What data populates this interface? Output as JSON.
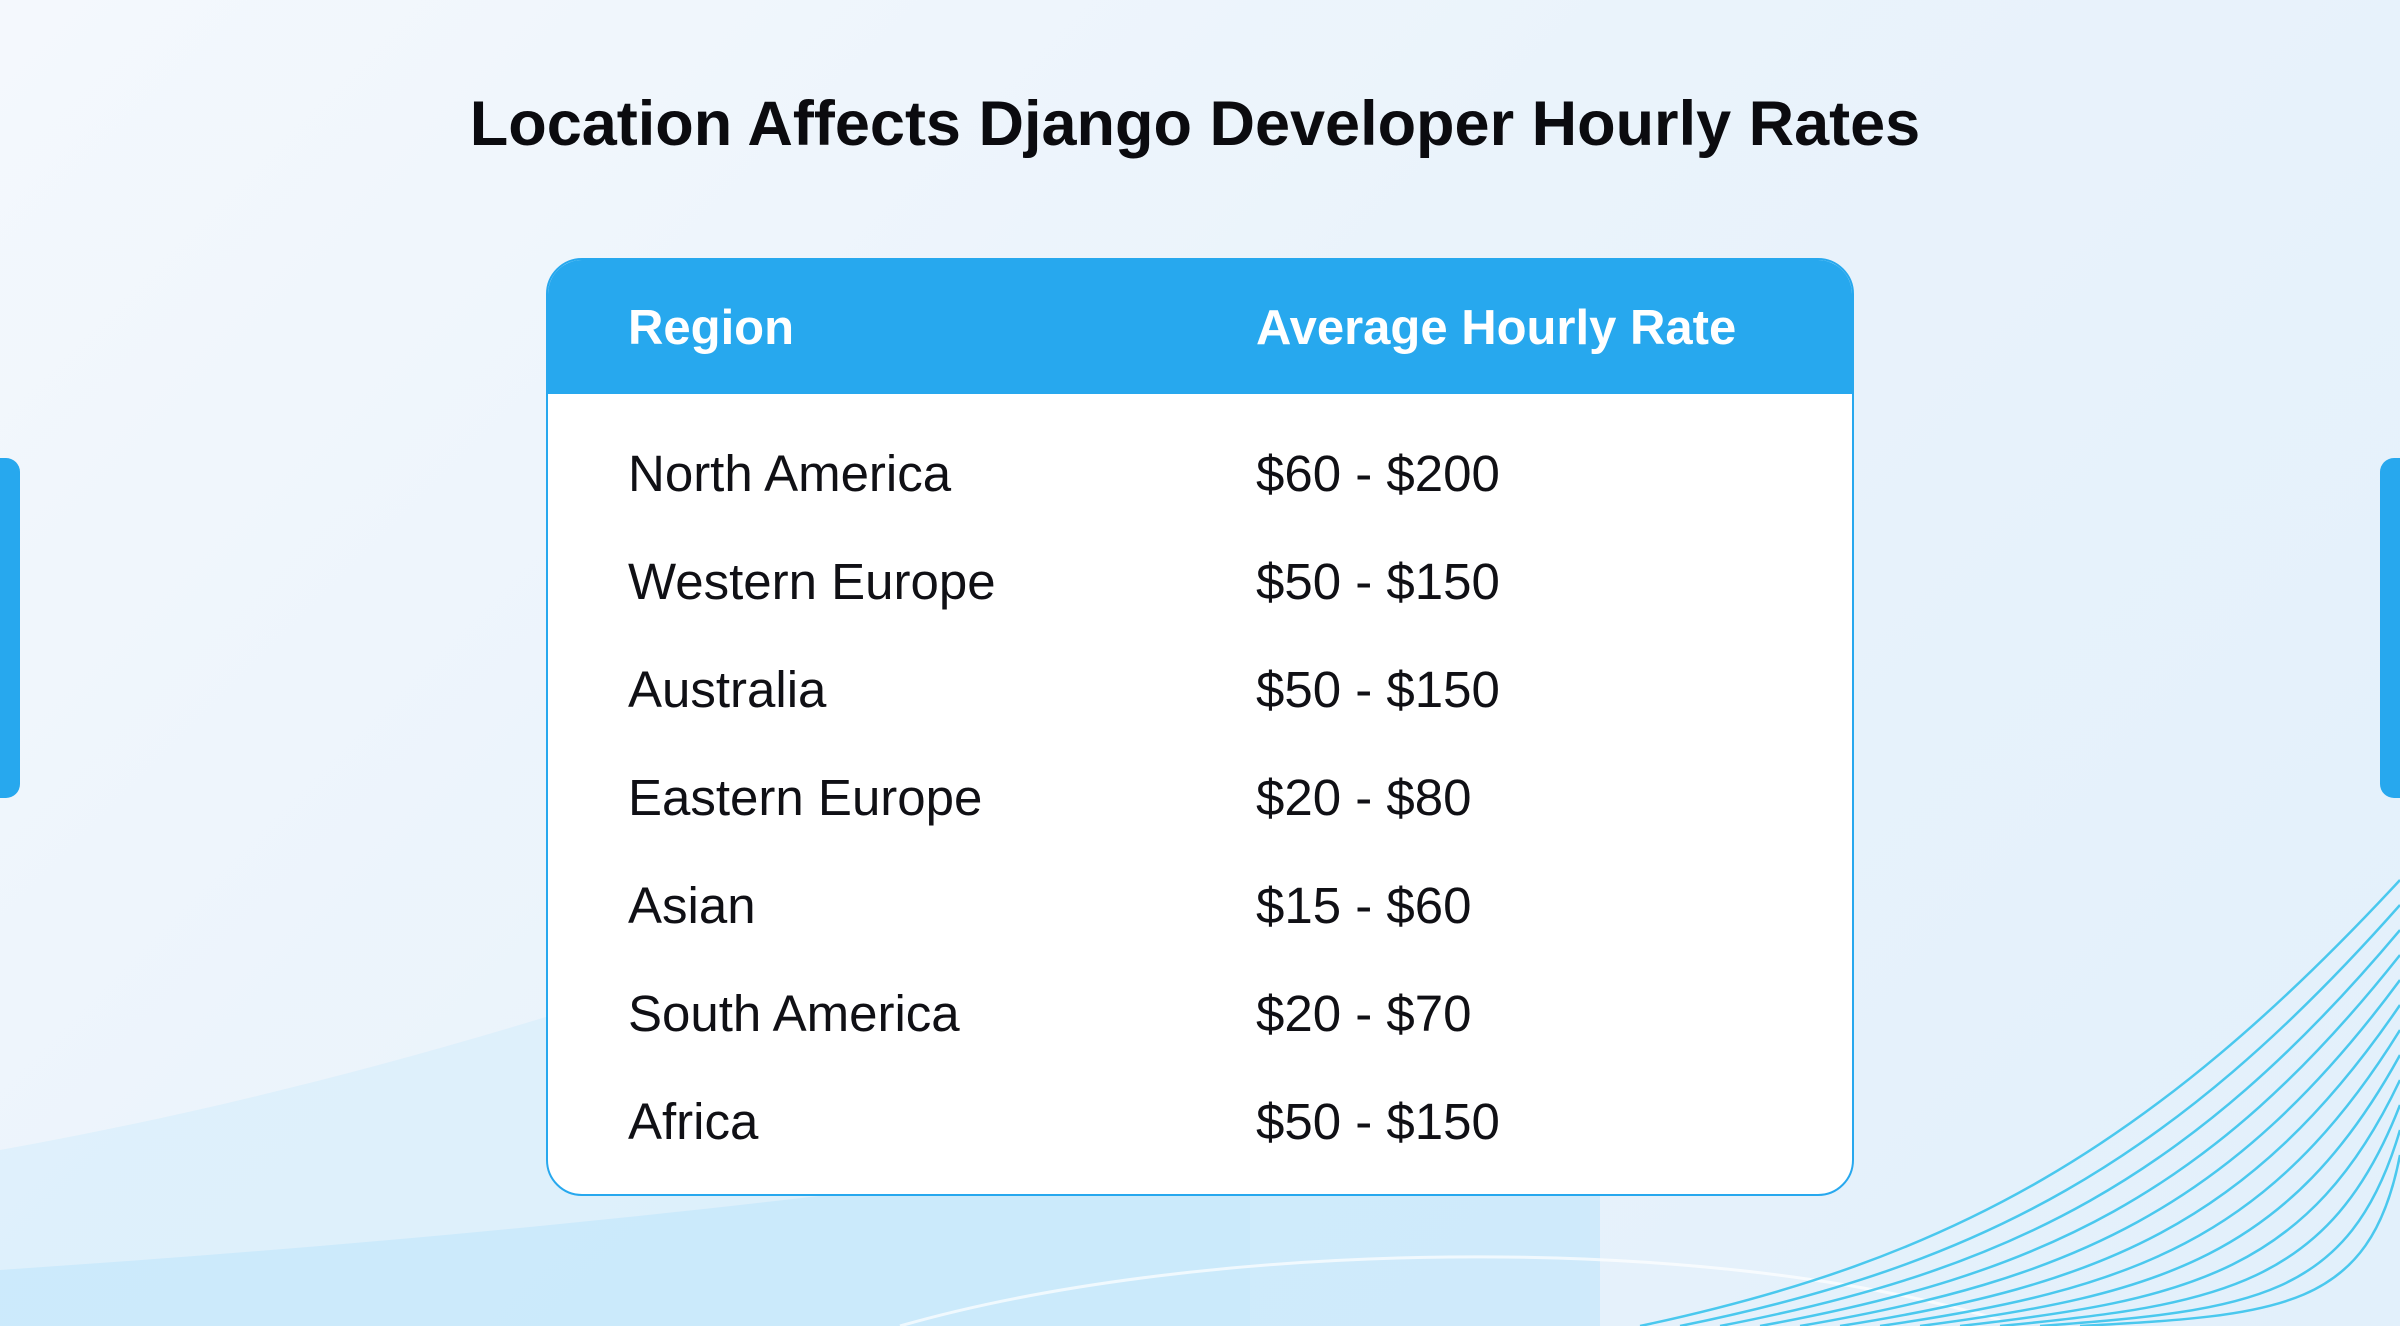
{
  "colors": {
    "accent": "#27a8ee",
    "title_text": "#0b0b0f",
    "header_text": "#ffffff",
    "cell_text": "#101015"
  },
  "chart_data": {
    "type": "table",
    "title": "Location Affects Django Developer Hourly Rates",
    "columns": [
      "Region",
      "Average Hourly Rate"
    ],
    "rows": [
      [
        "North America",
        "$60 - $200"
      ],
      [
        "Western Europe",
        "$50 - $150"
      ],
      [
        "Australia",
        "$50 - $150"
      ],
      [
        "Eastern Europe",
        "$20 - $80"
      ],
      [
        "Asian",
        "$15 - $60"
      ],
      [
        "South America",
        "$20 - $70"
      ],
      [
        "Africa",
        "$50 - $150"
      ]
    ]
  }
}
